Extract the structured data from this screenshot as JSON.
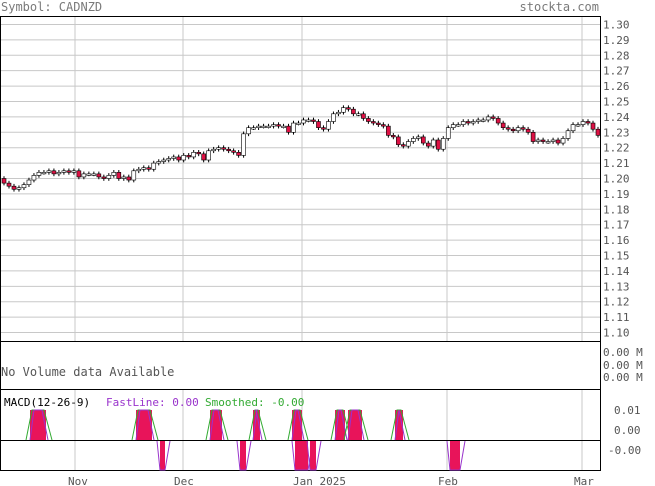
{
  "header": {
    "symbol_text": "Symbol: CADNZD",
    "site": "stockta.com"
  },
  "volume_panel": {
    "message": "No Volume data Available",
    "labels": [
      "0.00 M",
      "0.00 M",
      "0.00 M"
    ]
  },
  "macd_panel": {
    "title": "MACD(12-26-9)",
    "fastline_text": "FastLine: 0.00",
    "smoothed_text": "Smoothed: -0.00",
    "y_ticks": [
      "0.01",
      "0.00",
      "-0.00"
    ],
    "colors": {
      "fast": "#9933cc",
      "smoothed": "#33aa33",
      "hist": "#e8145a"
    }
  },
  "colors": {
    "grid": "#c8c8c8",
    "frame": "#000000",
    "text": "#555555",
    "down": "#dd1144",
    "up": "#ffffff"
  },
  "chart_data": {
    "type": "candlestick",
    "title": "",
    "ylim": [
      1.09,
      1.31
    ],
    "y_ticks": [
      1.1,
      1.11,
      1.12,
      1.13,
      1.14,
      1.15,
      1.16,
      1.17,
      1.18,
      1.19,
      1.2,
      1.21,
      1.22,
      1.23,
      1.24,
      1.25,
      1.26,
      1.27,
      1.28,
      1.29,
      1.3
    ],
    "x_tick_labels": [
      "Nov",
      "Dec",
      "Jan 2025",
      "Feb",
      "Mar"
    ],
    "close": [
      1.197,
      1.195,
      1.193,
      1.194,
      1.196,
      1.199,
      1.202,
      1.204,
      1.204,
      1.205,
      1.203,
      1.204,
      1.205,
      1.204,
      1.205,
      1.201,
      1.203,
      1.203,
      1.203,
      1.201,
      1.2,
      1.202,
      1.204,
      1.2,
      1.201,
      1.199,
      1.205,
      1.206,
      1.207,
      1.206,
      1.21,
      1.211,
      1.212,
      1.213,
      1.214,
      1.212,
      1.215,
      1.214,
      1.217,
      1.216,
      1.212,
      1.218,
      1.219,
      1.22,
      1.219,
      1.218,
      1.217,
      1.215,
      1.229,
      1.233,
      1.233,
      1.234,
      1.234,
      1.234,
      1.235,
      1.234,
      1.234,
      1.23,
      1.236,
      1.236,
      1.238,
      1.238,
      1.237,
      1.233,
      1.232,
      1.237,
      1.242,
      1.243,
      1.246,
      1.245,
      1.242,
      1.242,
      1.239,
      1.237,
      1.236,
      1.235,
      1.234,
      1.228,
      1.227,
      1.222,
      1.221,
      1.224,
      1.226,
      1.227,
      1.223,
      1.221,
      1.225,
      1.219,
      1.226,
      1.233,
      1.235,
      1.235,
      1.237,
      1.236,
      1.237,
      1.238,
      1.238,
      1.24,
      1.239,
      1.236,
      1.233,
      1.232,
      1.231,
      1.233,
      1.232,
      1.23,
      1.224,
      1.225,
      1.224,
      1.224,
      1.225,
      1.223,
      1.226,
      1.231,
      1.235,
      1.235,
      1.237,
      1.236,
      1.232,
      1.228
    ],
    "open": [
      1.2,
      1.197,
      1.195,
      1.193,
      1.194,
      1.196,
      1.199,
      1.202,
      1.204,
      1.204,
      1.205,
      1.203,
      1.204,
      1.205,
      1.204,
      1.205,
      1.201,
      1.203,
      1.203,
      1.203,
      1.201,
      1.2,
      1.202,
      1.204,
      1.2,
      1.201,
      1.199,
      1.205,
      1.206,
      1.207,
      1.206,
      1.21,
      1.211,
      1.212,
      1.213,
      1.214,
      1.212,
      1.215,
      1.214,
      1.217,
      1.216,
      1.212,
      1.218,
      1.219,
      1.22,
      1.219,
      1.218,
      1.217,
      1.215,
      1.229,
      1.233,
      1.233,
      1.234,
      1.234,
      1.234,
      1.235,
      1.234,
      1.234,
      1.23,
      1.236,
      1.236,
      1.238,
      1.238,
      1.237,
      1.233,
      1.232,
      1.237,
      1.242,
      1.243,
      1.246,
      1.245,
      1.242,
      1.242,
      1.239,
      1.237,
      1.236,
      1.235,
      1.234,
      1.228,
      1.227,
      1.222,
      1.221,
      1.224,
      1.226,
      1.227,
      1.223,
      1.221,
      1.225,
      1.219,
      1.226,
      1.233,
      1.235,
      1.235,
      1.237,
      1.236,
      1.237,
      1.238,
      1.238,
      1.24,
      1.239,
      1.236,
      1.233,
      1.232,
      1.231,
      1.233,
      1.232,
      1.23,
      1.224,
      1.225,
      1.224,
      1.224,
      1.225,
      1.223,
      1.226,
      1.231,
      1.235,
      1.235,
      1.237,
      1.236,
      1.232
    ]
  }
}
